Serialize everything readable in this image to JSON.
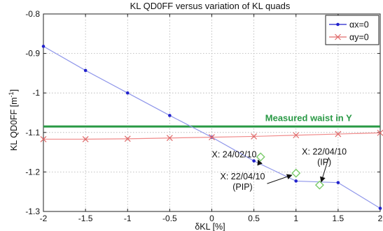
{
  "chart_data": {
    "type": "line",
    "title": "KL QD0FF versus variation of KL quads",
    "xlabel": "δKL [%]",
    "ylabel": "KL QD0FF [m",
    "ylabel_sup": "-1",
    "ylabel_close": "]",
    "xlim": [
      -2,
      2
    ],
    "ylim": [
      -1.3,
      -0.8
    ],
    "grid": true,
    "legend_position": "top-right",
    "x_ticks": [
      -2,
      -1.5,
      -1,
      -0.5,
      0,
      0.5,
      1,
      1.5,
      2
    ],
    "x_tick_labels": [
      "-2",
      "-1.5",
      "-1",
      "-0.5",
      "0",
      "0.5",
      "1",
      "1.5",
      "2"
    ],
    "y_ticks": [
      -0.8,
      -0.9,
      -1,
      -1.1,
      -1.2,
      -1.3
    ],
    "y_tick_labels": [
      "-0.8",
      "-0.9",
      "-1",
      "-1.1",
      "-1.2",
      "-1.3"
    ],
    "series": [
      {
        "name": "αx=0",
        "color": "#2222cc",
        "line_color": "#8f96ea",
        "marker": "dot",
        "x": [
          -2,
          -1.5,
          -1,
          -0.5,
          0,
          0.5,
          1,
          1.5,
          2
        ],
        "y": [
          -0.882,
          -0.943,
          -1.0,
          -1.057,
          -1.112,
          -1.172,
          -1.223,
          -1.227,
          -1.292
        ]
      },
      {
        "name": "αy=0",
        "color": "#e06a6a",
        "line_color": "#f08a8a",
        "marker": "x",
        "x": [
          -2,
          -1.5,
          -1,
          -0.5,
          0,
          0.5,
          1,
          1.5,
          2
        ],
        "y": [
          -1.117,
          -1.117,
          -1.116,
          -1.114,
          -1.112,
          -1.11,
          -1.107,
          -1.104,
          -1.101
        ]
      }
    ],
    "reference_line": {
      "label": "Measured waist in Y",
      "y": -1.085,
      "color": "#2a9a46"
    },
    "measurements": {
      "color": "#7acb6a",
      "points": [
        {
          "x": 0.58,
          "y": -1.162
        },
        {
          "x": 1.0,
          "y": -1.203
        },
        {
          "x": 1.28,
          "y": -1.233
        }
      ]
    },
    "annotations": [
      {
        "lines": [
          "X: 24/02/10"
        ],
        "text_x": 0.0,
        "text_y": -1.163,
        "arrow_to": [
          0.55,
          -1.17
        ]
      },
      {
        "lines": [
          "X: 22/04/10",
          "(PIP)"
        ],
        "text_x": 0.1,
        "text_y": -1.219,
        "arrow_to": [
          0.95,
          -1.208
        ]
      },
      {
        "lines": [
          "X: 22/04/10",
          "(IP)"
        ],
        "text_x": 1.07,
        "text_y": -1.156,
        "arrow_to": [
          1.3,
          -1.225
        ]
      }
    ]
  }
}
